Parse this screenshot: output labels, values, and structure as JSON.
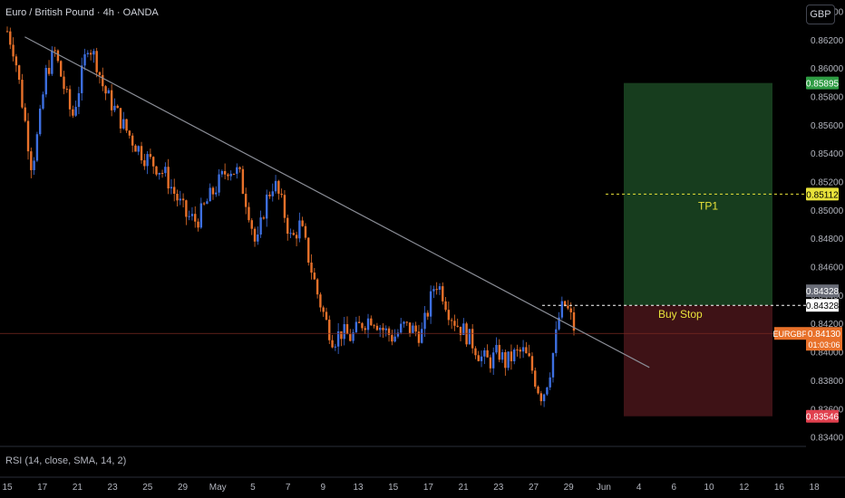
{
  "header": {
    "title": "Euro / British Pound · 4h · OANDA",
    "currency_button": "GBP"
  },
  "indicator": {
    "rsi_label": "RSI (14, close, SMA, 14, 2)"
  },
  "colors": {
    "up": "#3d6fe0",
    "down": "#e8712a",
    "trendline": "#8a8d96",
    "profit_zone": "#173d1e",
    "loss_zone": "#3e1216",
    "tp_line": "#e8e23a",
    "entry_line": "#ffffff",
    "current_line": "#7a2a22"
  },
  "chart_data": {
    "type": "candlestick",
    "title": "Euro / British Pound · 4h · OANDA",
    "y_axis": {
      "range": [
        0.8334,
        0.8648
      ],
      "ticks": [
        "0.86400",
        "0.86200",
        "0.86000",
        "0.85800",
        "0.85600",
        "0.85400",
        "0.85200",
        "0.85000",
        "0.84800",
        "0.84600",
        "0.84400",
        "0.84200",
        "0.84000",
        "0.83800",
        "0.83600",
        "0.83400"
      ]
    },
    "x_axis": {
      "ticks": [
        "15",
        "17",
        "21",
        "23",
        "25",
        "29",
        "May",
        "5",
        "7",
        "9",
        "13",
        "15",
        "17",
        "21",
        "23",
        "27",
        "29",
        "Jun",
        "4",
        "6",
        "10",
        "12",
        "16",
        "18"
      ]
    },
    "trendline": {
      "start": [
        0.5,
        0.8622
      ],
      "end": [
        18.3,
        0.8389
      ]
    },
    "close_path": [
      [
        0,
        0.8626
      ],
      [
        0.2,
        0.8612
      ],
      [
        0.45,
        0.8572
      ],
      [
        0.7,
        0.853
      ],
      [
        0.9,
        0.8558
      ],
      [
        1.1,
        0.8596
      ],
      [
        1.35,
        0.8612
      ],
      [
        1.6,
        0.8588
      ],
      [
        1.85,
        0.8565
      ],
      [
        2.1,
        0.8592
      ],
      [
        2.3,
        0.8618
      ],
      [
        2.55,
        0.8604
      ],
      [
        2.75,
        0.8585
      ],
      [
        3.0,
        0.8574
      ],
      [
        3.3,
        0.856
      ],
      [
        3.6,
        0.8548
      ],
      [
        3.9,
        0.8538
      ],
      [
        4.2,
        0.8532
      ],
      [
        4.5,
        0.8525
      ],
      [
        4.8,
        0.851
      ],
      [
        5.1,
        0.8496
      ],
      [
        5.4,
        0.8492
      ],
      [
        5.7,
        0.8506
      ],
      [
        6.0,
        0.8518
      ],
      [
        6.3,
        0.853
      ],
      [
        6.6,
        0.8526
      ],
      [
        6.9,
        0.8498
      ],
      [
        7.1,
        0.8472
      ],
      [
        7.35,
        0.8505
      ],
      [
        7.6,
        0.852
      ],
      [
        7.85,
        0.8502
      ],
      [
        8.1,
        0.8478
      ],
      [
        8.35,
        0.849
      ],
      [
        8.6,
        0.8465
      ],
      [
        8.85,
        0.844
      ],
      [
        9.1,
        0.842
      ],
      [
        9.3,
        0.8408
      ],
      [
        9.5,
        0.8414
      ],
      [
        9.8,
        0.841
      ],
      [
        10.1,
        0.842
      ],
      [
        10.4,
        0.8425
      ],
      [
        10.7,
        0.8416
      ],
      [
        11.0,
        0.841
      ],
      [
        11.3,
        0.8418
      ],
      [
        11.6,
        0.8415
      ],
      [
        11.8,
        0.8412
      ],
      [
        12.0,
        0.843
      ],
      [
        12.2,
        0.845
      ],
      [
        12.4,
        0.8442
      ],
      [
        12.6,
        0.8428
      ],
      [
        12.8,
        0.842
      ],
      [
        13.0,
        0.8415
      ],
      [
        13.3,
        0.8405
      ],
      [
        13.5,
        0.8396
      ],
      [
        13.75,
        0.8393
      ],
      [
        14.0,
        0.84
      ],
      [
        14.2,
        0.8392
      ],
      [
        14.45,
        0.8398
      ],
      [
        14.7,
        0.84
      ],
      [
        14.9,
        0.8392
      ],
      [
        15.1,
        0.8376
      ],
      [
        15.25,
        0.8368
      ],
      [
        15.45,
        0.8385
      ],
      [
        15.6,
        0.8405
      ],
      [
        15.75,
        0.8428
      ],
      [
        15.9,
        0.8433
      ],
      [
        16.05,
        0.8425
      ],
      [
        16.2,
        0.8413
      ]
    ],
    "last_price": "0.84130",
    "annotations": [
      {
        "label": "TP1",
        "price": 0.85112,
        "price_label": "0.85112"
      },
      {
        "label": "Buy Stop",
        "price": 0.84328,
        "price_label": "0.84328"
      }
    ],
    "zones": {
      "target_price": "0.85895",
      "entry_price": "0.84328",
      "stop_price": "0.83546"
    },
    "price_badge": {
      "symbol": "EURGBP",
      "price": "0.84130",
      "countdown": "01:03:06"
    }
  }
}
